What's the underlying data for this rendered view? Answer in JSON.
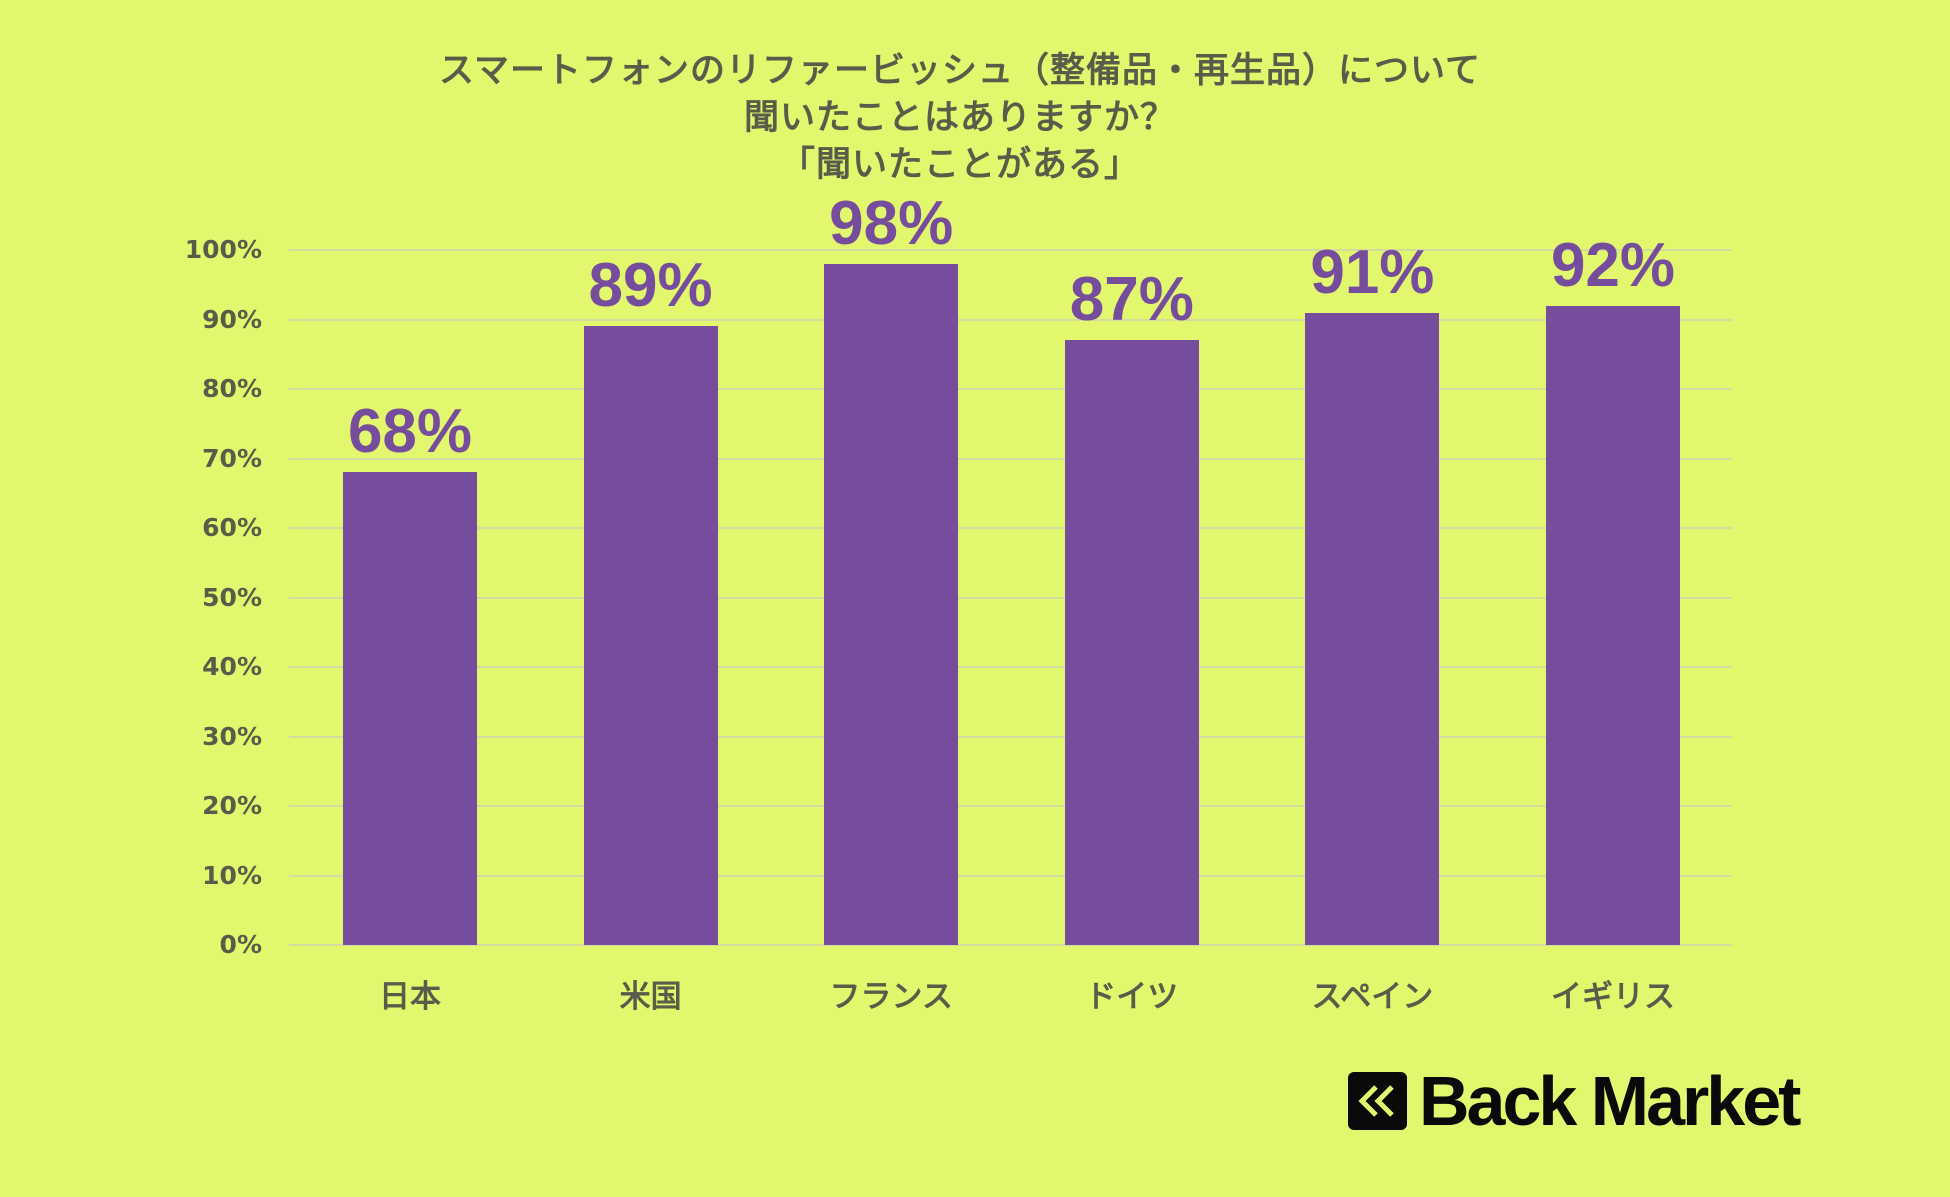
{
  "title": {
    "line1": "スマートフォンのリファービッシュ（整備品・再生品）について",
    "line2": "聞いたことはありますか？",
    "line3": "「聞いたことがある」"
  },
  "colors": {
    "background": "#E2F76E",
    "bar": "#764C9C",
    "text": "#5A5B48",
    "gridline": "#D3DB9E",
    "logo": "#0A0A0A"
  },
  "y_axis": {
    "ticks": [
      "100%",
      "90%",
      "80%",
      "70%",
      "60%",
      "50%",
      "40%",
      "30%",
      "20%",
      "10%",
      "0%"
    ]
  },
  "bars": [
    {
      "category": "日本",
      "value": 68,
      "label": "68%"
    },
    {
      "category": "米国",
      "value": 89,
      "label": "89%"
    },
    {
      "category": "フランス",
      "value": 98,
      "label": "98%"
    },
    {
      "category": "ドイツ",
      "value": 87,
      "label": "87%"
    },
    {
      "category": "スペイン",
      "value": 91,
      "label": "91%"
    },
    {
      "category": "イギリス",
      "value": 92,
      "label": "92%"
    }
  ],
  "logo": {
    "icon": "double-chevron-left-icon",
    "text": "Back Market"
  },
  "chart_data": {
    "type": "bar",
    "title": "スマートフォンのリファービッシュ（整備品・再生品）について聞いたことはありますか？「聞いたことがある」",
    "categories": [
      "日本",
      "米国",
      "フランス",
      "ドイツ",
      "スペイン",
      "イギリス"
    ],
    "values": [
      68,
      89,
      98,
      87,
      91,
      92
    ],
    "data_labels": [
      "68%",
      "89%",
      "98%",
      "87%",
      "91%",
      "92%"
    ],
    "xlabel": "",
    "ylabel": "",
    "ylim": [
      0,
      100
    ],
    "y_tick_step": 10,
    "y_tick_format": "percent",
    "grid": true,
    "legend": null
  }
}
